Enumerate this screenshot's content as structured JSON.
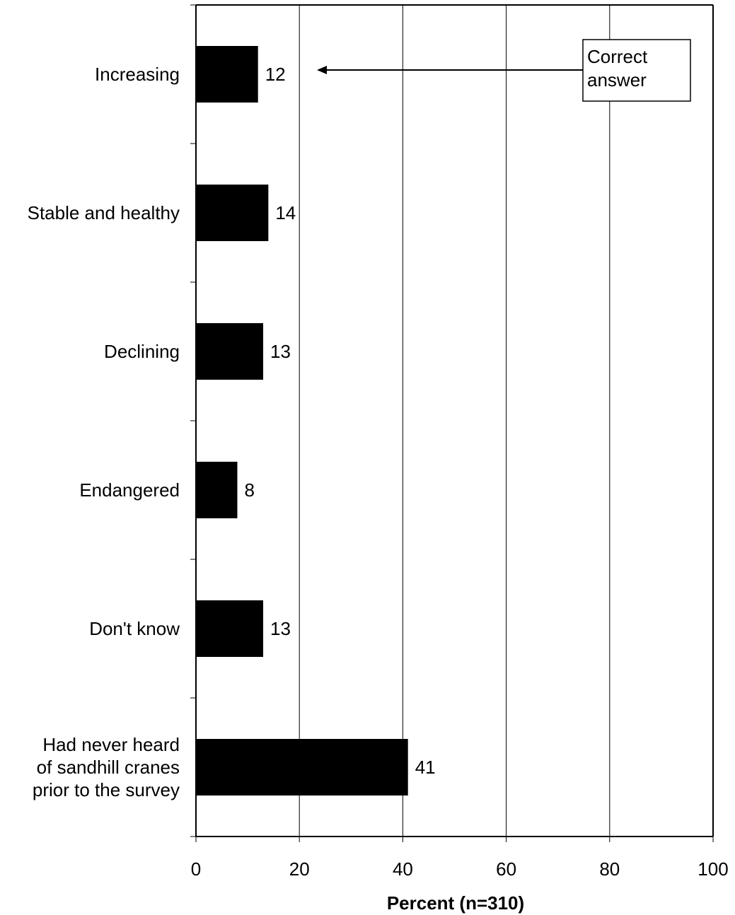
{
  "chart_data": {
    "type": "bar",
    "orientation": "horizontal",
    "categories": [
      [
        "Increasing"
      ],
      [
        "Stable and healthy"
      ],
      [
        "Declining"
      ],
      [
        "Endangered"
      ],
      [
        "Don't know"
      ],
      [
        "Had never heard",
        "of sandhill cranes",
        "prior to the survey"
      ]
    ],
    "values": [
      12,
      14,
      13,
      8,
      13,
      41
    ],
    "value_labels": [
      "12",
      "14",
      "13",
      "8",
      "13",
      "41"
    ],
    "xlabel": "Percent (n=310)",
    "ylabel": "",
    "title": "",
    "xlim": [
      0,
      100
    ],
    "xticks": [
      0,
      20,
      40,
      60,
      80,
      100
    ],
    "xtick_labels": [
      "0",
      "20",
      "40",
      "60",
      "80",
      "100"
    ],
    "grid": "vertical",
    "legend": "none",
    "bar_color": "#000000",
    "annotation": {
      "text": [
        "Correct",
        "answer"
      ],
      "points_to_category": "Increasing"
    }
  }
}
